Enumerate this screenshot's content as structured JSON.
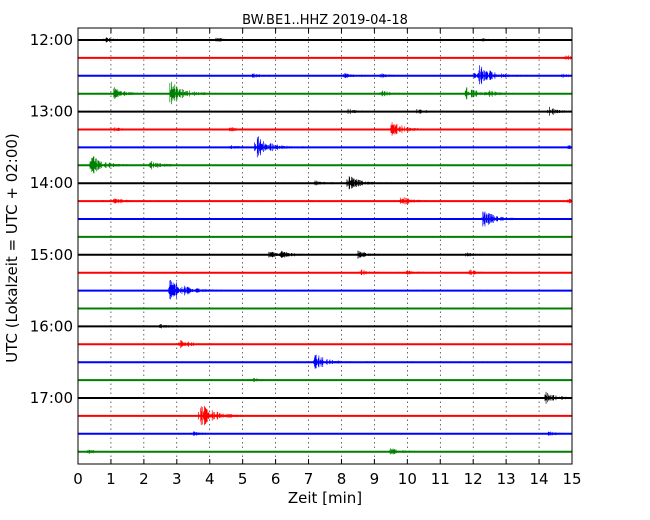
{
  "chart_data": {
    "type": "line",
    "title": "BW.BE1..HHZ 2019-04-18",
    "xlabel": "Zeit  [min]",
    "ylabel": "UTC (Lokalzeit = UTC + 02:00)",
    "xlim": [
      0,
      15
    ],
    "x_ticks": [
      0,
      1,
      2,
      3,
      4,
      5,
      6,
      7,
      8,
      9,
      10,
      11,
      12,
      13,
      14,
      15
    ],
    "x_tick_labels": [
      "0",
      "1",
      "2",
      "3",
      "4",
      "5",
      "6",
      "7",
      "8",
      "9",
      "10",
      "11",
      "12",
      "13",
      "14",
      "15"
    ],
    "grid": "dotted vertical at each minute",
    "trace_interval_min": 15,
    "y_tick_labels": [
      {
        "label": "12:00",
        "trace": 0
      },
      {
        "label": "13:00",
        "trace": 4
      },
      {
        "label": "14:00",
        "trace": 8
      },
      {
        "label": "15:00",
        "trace": 12
      },
      {
        "label": "16:00",
        "trace": 16
      },
      {
        "label": "17:00",
        "trace": 20
      }
    ],
    "colors": [
      "#000000",
      "#ff0000",
      "#0000ff",
      "#008000"
    ],
    "traces": [
      {
        "start": "12:00",
        "color": "#000000",
        "events": [
          {
            "t": 0.8,
            "amp": 0.35
          },
          {
            "t": 4.2,
            "amp": 0.3
          },
          {
            "t": 12.3,
            "amp": 0.15
          }
        ]
      },
      {
        "start": "12:15",
        "color": "#ff0000",
        "events": [
          {
            "t": 14.8,
            "amp": 0.35
          }
        ]
      },
      {
        "start": "12:30",
        "color": "#0000ff",
        "events": [
          {
            "t": 5.3,
            "amp": 0.25
          },
          {
            "t": 8.1,
            "amp": 0.35
          },
          {
            "t": 9.2,
            "amp": 0.25
          },
          {
            "t": 12.2,
            "amp": 1.3
          },
          {
            "t": 12.0,
            "amp": 0.35
          },
          {
            "t": 14.7,
            "amp": 0.25
          }
        ]
      },
      {
        "start": "12:45",
        "color": "#008000",
        "events": [
          {
            "t": 1.1,
            "amp": 0.75
          },
          {
            "t": 2.8,
            "amp": 1.6
          },
          {
            "t": 9.2,
            "amp": 0.45
          },
          {
            "t": 11.8,
            "amp": 0.95
          },
          {
            "t": 12.5,
            "amp": 0.3
          }
        ]
      },
      {
        "start": "13:00",
        "color": "#000000",
        "events": [
          {
            "t": 8.2,
            "amp": 0.3
          },
          {
            "t": 10.3,
            "amp": 0.3
          },
          {
            "t": 14.3,
            "amp": 0.55
          }
        ]
      },
      {
        "start": "13:15",
        "color": "#ff0000",
        "events": [
          {
            "t": 1.1,
            "amp": 0.25
          },
          {
            "t": 4.6,
            "amp": 0.3
          },
          {
            "t": 9.5,
            "amp": 1.15
          }
        ]
      },
      {
        "start": "13:30",
        "color": "#0000ff",
        "events": [
          {
            "t": 5.4,
            "amp": 1.6
          },
          {
            "t": 4.6,
            "amp": 0.35
          },
          {
            "t": 14.9,
            "amp": 0.3
          }
        ]
      },
      {
        "start": "13:45",
        "color": "#008000",
        "events": [
          {
            "t": 0.4,
            "amp": 1.3
          },
          {
            "t": 2.2,
            "amp": 0.65
          }
        ]
      },
      {
        "start": "14:00",
        "color": "#000000",
        "events": [
          {
            "t": 8.2,
            "amp": 1.05
          },
          {
            "t": 7.2,
            "amp": 0.3
          }
        ]
      },
      {
        "start": "14:15",
        "color": "#ff0000",
        "events": [
          {
            "t": 1.1,
            "amp": 0.45
          },
          {
            "t": 9.8,
            "amp": 0.65
          },
          {
            "t": 14.9,
            "amp": 0.25
          }
        ]
      },
      {
        "start": "14:30",
        "color": "#0000ff",
        "events": [
          {
            "t": 12.3,
            "amp": 1.15
          }
        ]
      },
      {
        "start": "14:45",
        "color": "#008000",
        "events": []
      },
      {
        "start": "15:00",
        "color": "#000000",
        "events": [
          {
            "t": 5.8,
            "amp": 0.5
          },
          {
            "t": 6.2,
            "amp": 0.4
          },
          {
            "t": 8.5,
            "amp": 0.45
          },
          {
            "t": 11.8,
            "amp": 0.25
          }
        ]
      },
      {
        "start": "15:15",
        "color": "#ff0000",
        "events": [
          {
            "t": 8.6,
            "amp": 0.35
          },
          {
            "t": 10.0,
            "amp": 0.25
          },
          {
            "t": 11.9,
            "amp": 0.35
          }
        ]
      },
      {
        "start": "15:30",
        "color": "#0000ff",
        "events": [
          {
            "t": 2.8,
            "amp": 1.7
          }
        ]
      },
      {
        "start": "15:45",
        "color": "#008000",
        "events": []
      },
      {
        "start": "16:00",
        "color": "#000000",
        "events": [
          {
            "t": 2.5,
            "amp": 0.25
          }
        ]
      },
      {
        "start": "16:15",
        "color": "#ff0000",
        "events": [
          {
            "t": 3.1,
            "amp": 0.65
          }
        ]
      },
      {
        "start": "16:30",
        "color": "#0000ff",
        "events": [
          {
            "t": 7.2,
            "amp": 1.15
          }
        ]
      },
      {
        "start": "16:45",
        "color": "#008000",
        "events": [
          {
            "t": 5.3,
            "amp": 0.2
          }
        ]
      },
      {
        "start": "17:00",
        "color": "#000000",
        "events": [
          {
            "t": 14.2,
            "amp": 0.75
          }
        ]
      },
      {
        "start": "17:15",
        "color": "#ff0000",
        "events": [
          {
            "t": 3.7,
            "amp": 1.75
          }
        ]
      },
      {
        "start": "17:30",
        "color": "#0000ff",
        "events": [
          {
            "t": 3.5,
            "amp": 0.25
          },
          {
            "t": 14.3,
            "amp": 0.3
          }
        ]
      },
      {
        "start": "17:45",
        "color": "#008000",
        "events": [
          {
            "t": 0.3,
            "amp": 0.25
          },
          {
            "t": 9.5,
            "amp": 0.55
          }
        ]
      }
    ]
  }
}
